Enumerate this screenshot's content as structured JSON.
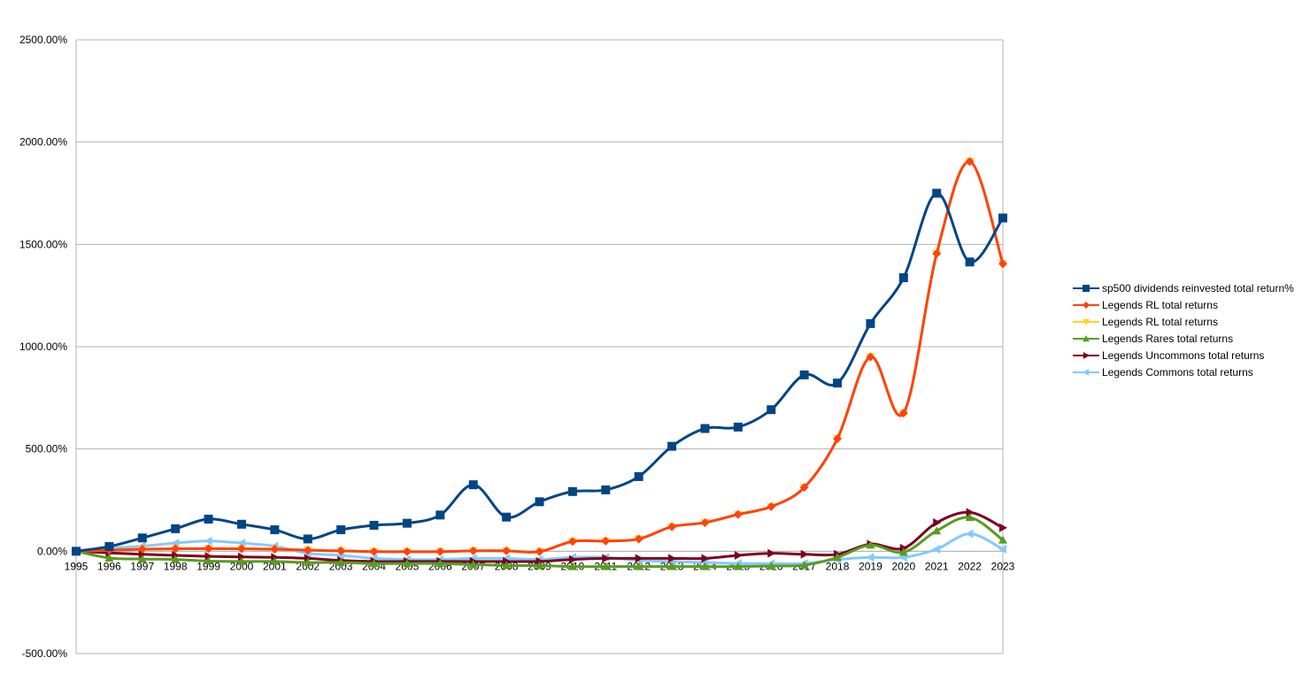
{
  "chart_data": {
    "type": "line",
    "title": "",
    "xlabel": "",
    "ylabel": "",
    "x": [
      "1995",
      "1996",
      "1997",
      "1998",
      "1999",
      "2000",
      "2001",
      "2002",
      "2003",
      "2004",
      "2005",
      "2006",
      "2007",
      "2008",
      "2009",
      "2010",
      "2011",
      "2012",
      "2013",
      "2014",
      "2015",
      "2016",
      "2017",
      "2018",
      "2019",
      "2020",
      "2021",
      "2022",
      "2023"
    ],
    "ylim": [
      -500,
      2500
    ],
    "yticks": [
      -500,
      0,
      500,
      1000,
      1500,
      2000,
      2500
    ],
    "ytick_labels": [
      "-500.00%",
      "0.00%",
      "500.00%",
      "1000.00%",
      "1500.00%",
      "2000.00%",
      "2500.00%"
    ],
    "grid": true,
    "legend_position": "right",
    "series": [
      {
        "name": "sp500 dividends reinvested total return%",
        "color": "#004586",
        "marker": "square",
        "values": [
          0,
          23,
          65,
          110,
          157,
          132,
          105,
          60,
          105,
          127,
          137,
          177,
          325,
          167,
          242,
          292,
          300,
          365,
          513,
          600,
          607,
          692,
          862,
          822,
          1113,
          1337,
          1750,
          1414,
          1629
        ]
      },
      {
        "name": "Legends RL total returns",
        "color": "#ff420e",
        "marker": "diamond",
        "values": [
          0,
          5,
          10,
          12,
          13,
          12,
          10,
          5,
          2,
          -2,
          -2,
          -2,
          2,
          2,
          -2,
          48,
          50,
          60,
          120,
          140,
          180,
          218,
          312,
          550,
          950,
          675,
          1455,
          1905,
          1405
        ]
      },
      {
        "name": "Legends RL total returns",
        "color": "#ffd320",
        "marker": "triangle-down",
        "values": [
          0,
          5,
          10,
          12,
          13,
          12,
          10,
          5,
          2,
          -2,
          -2,
          -2,
          2,
          2,
          -2,
          48,
          50,
          60,
          120,
          140,
          180,
          218,
          312,
          550,
          950,
          675,
          1455,
          1905,
          1405
        ]
      },
      {
        "name": "Legends Rares total returns",
        "color": "#579d1c",
        "marker": "triangle-up",
        "values": [
          0,
          -33,
          -38,
          -40,
          -48,
          -50,
          -50,
          -55,
          -55,
          -60,
          -60,
          -60,
          -65,
          -70,
          -70,
          -75,
          -75,
          -75,
          -75,
          -75,
          -75,
          -72,
          -68,
          -30,
          30,
          -5,
          100,
          165,
          55
        ]
      },
      {
        "name": "Legends Uncommons total returns",
        "color": "#7e0021",
        "marker": "triangle-right",
        "values": [
          0,
          -8,
          -15,
          -20,
          -25,
          -28,
          -30,
          -35,
          -45,
          -50,
          -50,
          -50,
          -50,
          -50,
          -50,
          -40,
          -35,
          -35,
          -35,
          -35,
          -20,
          -10,
          -15,
          -15,
          35,
          15,
          140,
          190,
          115
        ]
      },
      {
        "name": "Legends Commons total returns",
        "color": "#83caff",
        "marker": "triangle-left",
        "values": [
          0,
          15,
          25,
          40,
          50,
          40,
          25,
          -10,
          -20,
          -35,
          -40,
          -40,
          -35,
          -35,
          -40,
          -30,
          -30,
          -45,
          -50,
          -55,
          -60,
          -60,
          -60,
          -40,
          -30,
          -30,
          10,
          85,
          10
        ]
      }
    ]
  }
}
